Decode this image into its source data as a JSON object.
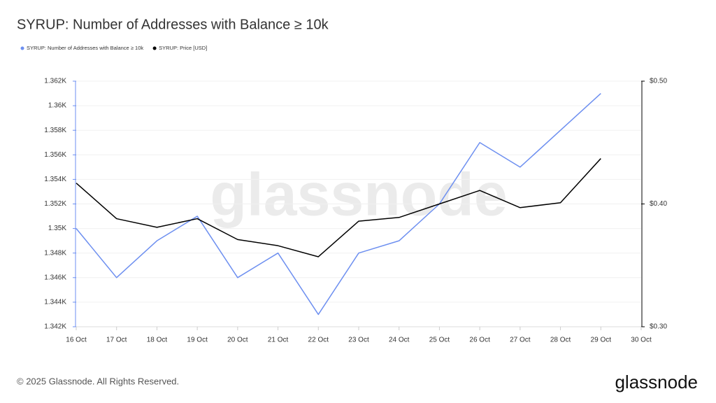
{
  "chart_data": {
    "type": "line",
    "title": "SYRUP: Number of Addresses with Balance ≥ 10k",
    "categories": [
      "16 Oct",
      "17 Oct",
      "18 Oct",
      "19 Oct",
      "20 Oct",
      "21 Oct",
      "22 Oct",
      "23 Oct",
      "24 Oct",
      "25 Oct",
      "26 Oct",
      "27 Oct",
      "28 Oct",
      "29 Oct",
      "30 Oct"
    ],
    "series": [
      {
        "name": "SYRUP: Number of Addresses with Balance ≥ 10k",
        "color": "#6d8ff0",
        "values": [
          1350,
          1346,
          1349,
          1351,
          1346,
          1348,
          1343,
          1348,
          1349,
          1352,
          1357,
          1355,
          1358,
          1361,
          null
        ]
      },
      {
        "name": "SYRUP: Price [USD]",
        "color": "#000000",
        "axis": "y2",
        "values": [
          0.417,
          0.388,
          0.381,
          0.388,
          0.371,
          0.366,
          0.357,
          0.386,
          0.389,
          0.4,
          0.411,
          0.397,
          0.401,
          0.437,
          null
        ]
      }
    ],
    "ylim": [
      1342,
      1362
    ],
    "yticks": [
      {
        "value": 1342,
        "label": "1.342K"
      },
      {
        "value": 1344,
        "label": "1.344K"
      },
      {
        "value": 1346,
        "label": "1.346K"
      },
      {
        "value": 1348,
        "label": "1.348K"
      },
      {
        "value": 1350,
        "label": "1.35K"
      },
      {
        "value": 1352,
        "label": "1.352K"
      },
      {
        "value": 1354,
        "label": "1.354K"
      },
      {
        "value": 1356,
        "label": "1.356K"
      },
      {
        "value": 1358,
        "label": "1.358K"
      },
      {
        "value": 1360,
        "label": "1.36K"
      },
      {
        "value": 1362,
        "label": "1.362K"
      }
    ],
    "y2lim": [
      0.3,
      0.5
    ],
    "y2ticks": [
      {
        "value": 0.3,
        "label": "$0.30"
      },
      {
        "value": 0.4,
        "label": "$0.40"
      },
      {
        "value": 0.5,
        "label": "$0.50"
      }
    ],
    "grid": true,
    "watermark": "glassnode",
    "footer": "© 2025 Glassnode. All Rights Reserved.",
    "logo": "glassnode"
  }
}
